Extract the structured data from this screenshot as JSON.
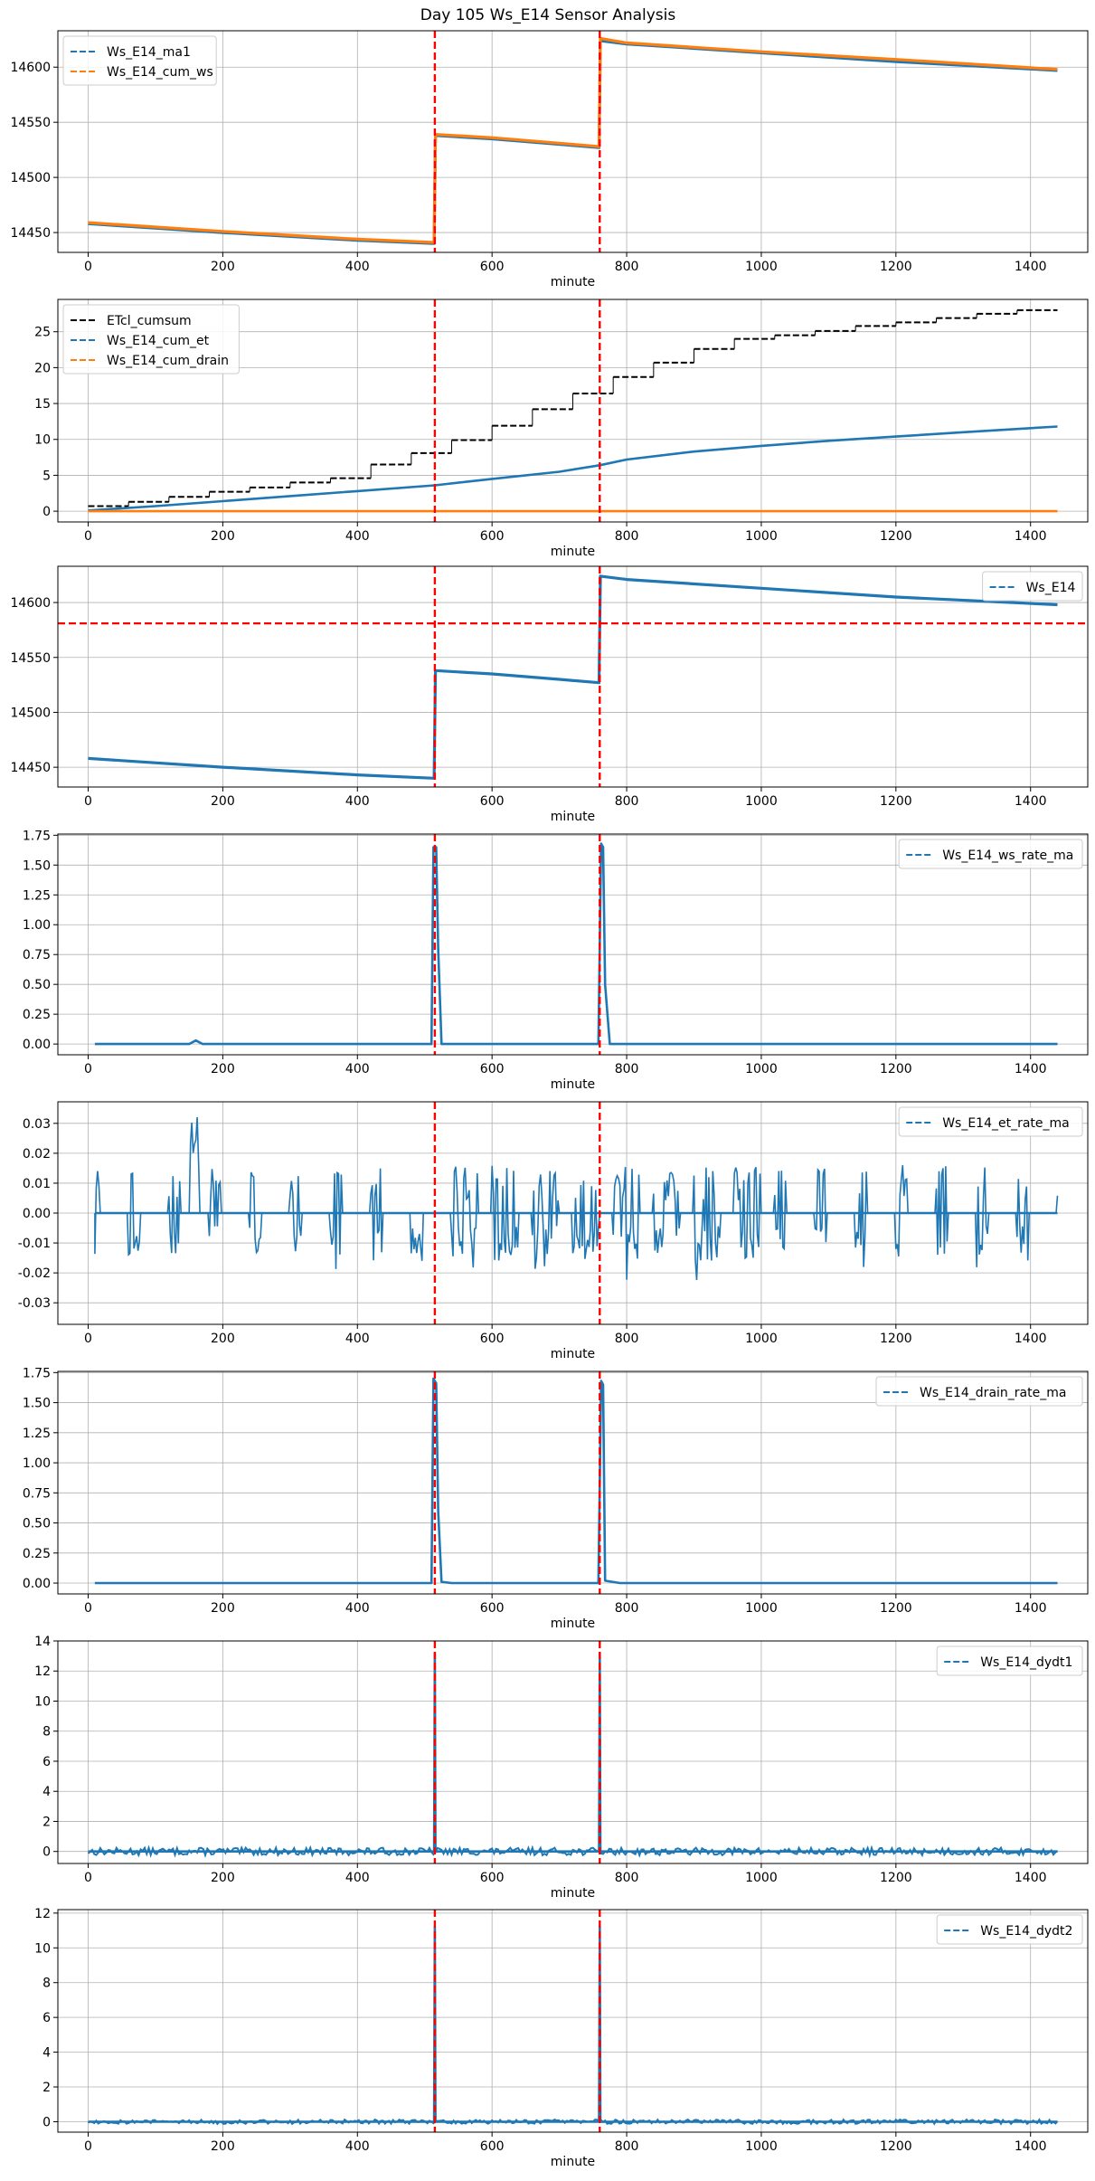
{
  "figure": {
    "title": "Day 105 Ws_E14 Sensor Analysis"
  },
  "colors": {
    "blue": "#1f77b4",
    "orange": "#ff7f0e",
    "black": "#000000",
    "red": "#ff0000",
    "grid": "#b0b0b0"
  },
  "chart_data": [
    {
      "type": "line",
      "xlabel": "minute",
      "ylabel": "",
      "xlim": [
        -45,
        1485
      ],
      "ylim": [
        14432,
        14633
      ],
      "xticks": [
        0,
        200,
        400,
        600,
        800,
        1000,
        1200,
        1400
      ],
      "yticks": [
        14450,
        14500,
        14550,
        14600
      ],
      "ytick_labels": [
        "14450",
        "14500",
        "14550",
        "14600"
      ],
      "grid": true,
      "legend": "upper left",
      "vlines": [
        515,
        760
      ],
      "hlines": [],
      "series": [
        {
          "name": "Ws_E14_ma1",
          "color": "#1f77b4",
          "style": "dashed",
          "x": [
            0,
            200,
            400,
            514,
            516,
            600,
            700,
            759,
            761,
            800,
            1000,
            1200,
            1440
          ],
          "y": [
            14458,
            14450,
            14443,
            14440,
            14538,
            14535,
            14530,
            14527,
            14624,
            14621,
            14613,
            14605,
            14597
          ]
        },
        {
          "name": "Ws_E14_cum_ws",
          "color": "#ff7f0e",
          "style": "dashed",
          "x": [
            0,
            200,
            400,
            514,
            516,
            600,
            700,
            759,
            761,
            800,
            1000,
            1200,
            1440
          ],
          "y": [
            14459,
            14451,
            14444,
            14441,
            14539,
            14536,
            14531,
            14528,
            14626,
            14622,
            14614,
            14607,
            14598
          ]
        }
      ]
    },
    {
      "type": "line",
      "xlabel": "minute",
      "ylabel": "",
      "xlim": [
        -45,
        1485
      ],
      "ylim": [
        -1.5,
        29.5
      ],
      "xticks": [
        0,
        200,
        400,
        600,
        800,
        1000,
        1200,
        1400
      ],
      "yticks": [
        0,
        5,
        10,
        15,
        20,
        25
      ],
      "ytick_labels": [
        "0",
        "5",
        "10",
        "15",
        "20",
        "25"
      ],
      "grid": true,
      "legend": "upper left",
      "vlines": [
        515,
        760
      ],
      "hlines": [],
      "series": [
        {
          "name": "ETcl_cumsum",
          "color": "#000000",
          "style": "steps",
          "x": [
            0,
            60,
            120,
            180,
            240,
            300,
            360,
            420,
            480,
            540,
            600,
            660,
            720,
            780,
            840,
            900,
            960,
            1020,
            1080,
            1140,
            1200,
            1260,
            1320,
            1380,
            1440
          ],
          "y": [
            0.7,
            1.3,
            2.0,
            2.7,
            3.3,
            4.0,
            4.6,
            6.5,
            8.1,
            9.9,
            11.9,
            14.2,
            16.4,
            18.7,
            20.7,
            22.6,
            24.0,
            24.5,
            25.1,
            25.8,
            26.3,
            26.9,
            27.5,
            28.0,
            28.0
          ]
        },
        {
          "name": "Ws_E14_cum_et",
          "color": "#1f77b4",
          "style": "dashed",
          "x": [
            0,
            100,
            200,
            300,
            400,
            515,
            600,
            700,
            760,
            800,
            900,
            1000,
            1100,
            1200,
            1300,
            1440
          ],
          "y": [
            0.1,
            0.7,
            1.4,
            2.1,
            2.8,
            3.6,
            4.5,
            5.5,
            6.4,
            7.2,
            8.3,
            9.1,
            9.8,
            10.4,
            11.0,
            11.8
          ]
        },
        {
          "name": "Ws_E14_cum_drain",
          "color": "#ff7f0e",
          "style": "dashed",
          "x": [
            0,
            1440
          ],
          "y": [
            0,
            0
          ]
        }
      ]
    },
    {
      "type": "line",
      "xlabel": "minute",
      "ylabel": "",
      "xlim": [
        -45,
        1485
      ],
      "ylim": [
        14432,
        14633
      ],
      "xticks": [
        0,
        200,
        400,
        600,
        800,
        1000,
        1200,
        1400
      ],
      "yticks": [
        14450,
        14500,
        14550,
        14600
      ],
      "ytick_labels": [
        "14450",
        "14500",
        "14550",
        "14600"
      ],
      "grid": true,
      "legend": "upper right",
      "vlines": [
        515,
        760
      ],
      "hlines": [
        14581
      ],
      "series": [
        {
          "name": "Ws_E14",
          "color": "#1f77b4",
          "style": "dashed",
          "x": [
            0,
            200,
            400,
            514,
            516,
            600,
            700,
            759,
            761,
            800,
            1000,
            1200,
            1440
          ],
          "y": [
            14458,
            14450,
            14443,
            14440,
            14538,
            14535,
            14530,
            14527,
            14624,
            14621,
            14613,
            14605,
            14598
          ]
        }
      ]
    },
    {
      "type": "line",
      "xlabel": "minute",
      "ylabel": "",
      "xlim": [
        -45,
        1485
      ],
      "ylim": [
        -0.09,
        1.76
      ],
      "xticks": [
        0,
        200,
        400,
        600,
        800,
        1000,
        1200,
        1400
      ],
      "yticks": [
        0,
        0.25,
        0.5,
        0.75,
        1.0,
        1.25,
        1.5,
        1.75
      ],
      "ytick_labels": [
        "0.00",
        "0.25",
        "0.50",
        "0.75",
        "1.00",
        "1.25",
        "1.50",
        "1.75"
      ],
      "grid": true,
      "legend": "upper right",
      "vlines": [
        515,
        760
      ],
      "hlines": [],
      "series": [
        {
          "name": "Ws_E14_ws_rate_ma",
          "color": "#1f77b4",
          "style": "dashed",
          "x": [
            10,
            150,
            160,
            170,
            505,
            510,
            513,
            517,
            520,
            525,
            755,
            758,
            762,
            765,
            768,
            775,
            1000,
            1440
          ],
          "y": [
            0,
            0,
            0.03,
            0,
            0,
            0,
            1.65,
            1.65,
            0.8,
            0,
            0,
            0,
            1.68,
            1.65,
            0.5,
            0,
            0,
            0
          ]
        }
      ]
    },
    {
      "type": "line",
      "xlabel": "minute",
      "ylabel": "",
      "xlim": [
        -45,
        1485
      ],
      "ylim": [
        -0.0372,
        0.0372
      ],
      "xticks": [
        0,
        200,
        400,
        600,
        800,
        1000,
        1200,
        1400
      ],
      "yticks": [
        -0.03,
        -0.02,
        -0.01,
        0,
        0.01,
        0.02,
        0.03
      ],
      "ytick_labels": [
        "-0.03",
        "-0.02",
        "-0.01",
        "0.00",
        "0.01",
        "0.02",
        "0.03"
      ],
      "grid": true,
      "legend": "upper right",
      "vlines": [
        515,
        760
      ],
      "hlines": [],
      "series": [
        {
          "name": "Ws_E14_et_rate_ma",
          "color": "#1f77b4",
          "style": "dashed",
          "x": [],
          "y": []
        }
      ]
    },
    {
      "type": "line",
      "xlabel": "minute",
      "ylabel": "",
      "xlim": [
        -45,
        1485
      ],
      "ylim": [
        -0.09,
        1.76
      ],
      "xticks": [
        0,
        200,
        400,
        600,
        800,
        1000,
        1200,
        1400
      ],
      "yticks": [
        0,
        0.25,
        0.5,
        0.75,
        1.0,
        1.25,
        1.5,
        1.75
      ],
      "ytick_labels": [
        "0.00",
        "0.25",
        "0.50",
        "0.75",
        "1.00",
        "1.25",
        "1.50",
        "1.75"
      ],
      "grid": true,
      "legend": "upper right",
      "vlines": [
        515,
        760
      ],
      "hlines": [],
      "series": [
        {
          "name": "Ws_E14_drain_rate_ma",
          "color": "#1f77b4",
          "style": "dashed",
          "x": [
            10,
            505,
            510,
            513,
            517,
            520,
            525,
            540,
            755,
            758,
            762,
            765,
            768,
            790,
            1440
          ],
          "y": [
            0,
            0,
            0,
            1.7,
            1.66,
            0.6,
            0.01,
            0,
            0,
            0,
            1.68,
            1.65,
            0.02,
            0,
            0
          ]
        }
      ]
    },
    {
      "type": "line",
      "xlabel": "minute",
      "ylabel": "",
      "xlim": [
        -45,
        1485
      ],
      "ylim": [
        -0.8,
        14.0
      ],
      "xticks": [
        0,
        200,
        400,
        600,
        800,
        1000,
        1200,
        1400
      ],
      "yticks": [
        0,
        2,
        4,
        6,
        8,
        10,
        12,
        14
      ],
      "ytick_labels": [
        "0",
        "2",
        "4",
        "6",
        "8",
        "10",
        "12",
        "14"
      ],
      "grid": true,
      "legend": "upper right",
      "vlines": [
        515,
        760
      ],
      "hlines": [],
      "series": [
        {
          "name": "Ws_E14_dydt1",
          "color": "#1f77b4",
          "style": "dashed",
          "x": [
            0,
            514,
            515,
            516,
            759,
            760,
            761,
            1440
          ],
          "y": [
            0,
            0,
            13.2,
            0,
            0,
            13.2,
            0,
            0
          ]
        }
      ]
    },
    {
      "type": "line",
      "xlabel": "minute",
      "ylabel": "",
      "xlim": [
        -45,
        1485
      ],
      "ylim": [
        -0.6,
        12.2
      ],
      "xticks": [
        0,
        200,
        400,
        600,
        800,
        1000,
        1200,
        1400
      ],
      "yticks": [
        0,
        2,
        4,
        6,
        8,
        10,
        12
      ],
      "ytick_labels": [
        "0",
        "2",
        "4",
        "6",
        "8",
        "10",
        "12"
      ],
      "grid": true,
      "legend": "upper right",
      "vlines": [
        515,
        760
      ],
      "hlines": [],
      "series": [
        {
          "name": "Ws_E14_dydt2",
          "color": "#1f77b4",
          "style": "dashed",
          "x": [
            0,
            514,
            515,
            516,
            759,
            760,
            761,
            1440
          ],
          "y": [
            0,
            0,
            11.2,
            0,
            0,
            11.2,
            0,
            0
          ]
        }
      ]
    }
  ]
}
